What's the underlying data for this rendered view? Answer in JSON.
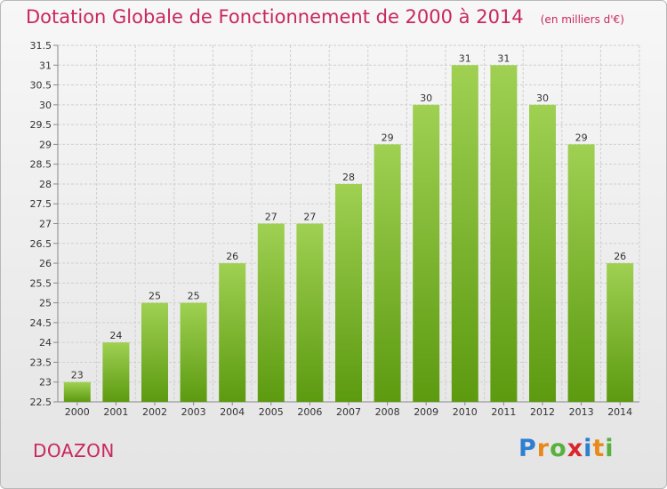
{
  "title": "Dotation Globale de Fonctionnement de 2000 à 2014",
  "unit": "(en milliers d'€)",
  "commune": "DOAZON",
  "brand": {
    "letters": [
      "P",
      "r",
      "o",
      "x",
      "i",
      "t",
      "i"
    ],
    "colors": [
      "#2f7fd0",
      "#e88a1a",
      "#57b13c",
      "#d9262d",
      "#2f7fd0",
      "#e88a1a",
      "#57b13c"
    ]
  },
  "colors": {
    "bar_top": "#9fd052",
    "bar_bottom": "#5c9a10",
    "title": "#c8285c",
    "grid": "#cfcfcf"
  },
  "chart_data": {
    "type": "bar",
    "categories": [
      "2000",
      "2001",
      "2002",
      "2003",
      "2004",
      "2005",
      "2006",
      "2007",
      "2008",
      "2009",
      "2010",
      "2011",
      "2012",
      "2013",
      "2014"
    ],
    "values": [
      23,
      24,
      25,
      25,
      26,
      27,
      27,
      28,
      29,
      30,
      31,
      31,
      30,
      29,
      26
    ],
    "ylim": [
      22.5,
      31.5
    ],
    "yticks": [
      "22.5",
      "23",
      "23.5",
      "24",
      "24.5",
      "25",
      "25.5",
      "26",
      "26.5",
      "27",
      "27.5",
      "28",
      "28.5",
      "29",
      "29.5",
      "30",
      "30.5",
      "31",
      "31.5"
    ],
    "grid": true,
    "xlabel": "",
    "ylabel": ""
  }
}
